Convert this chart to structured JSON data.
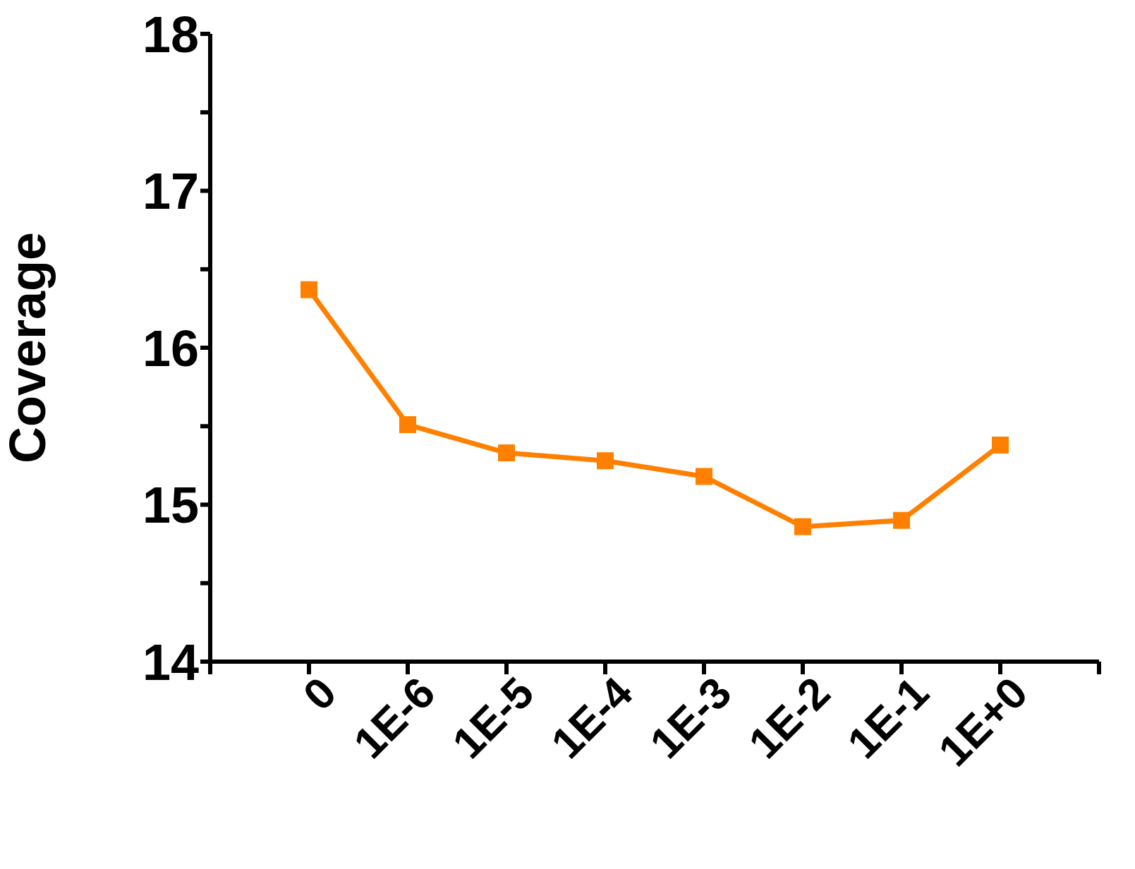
{
  "chart_data": {
    "type": "line",
    "ylabel": "Coverage",
    "categories": [
      "0",
      "1E-6",
      "1E-5",
      "1E-4",
      "1E-3",
      "1E-2",
      "1E-1",
      "1E+0"
    ],
    "series": [
      {
        "color": "#ff8000",
        "values": [
          16.37,
          15.51,
          15.33,
          15.28,
          15.18,
          14.86,
          14.9,
          15.38
        ]
      }
    ],
    "ylim": [
      14,
      18
    ],
    "yticks": [
      14,
      {
        "value": 14.5,
        "label": null
      },
      15,
      {
        "value": 15.5,
        "label": null
      },
      16,
      {
        "value": 16.5,
        "label": null
      },
      17,
      {
        "value": 17.5,
        "label": null
      },
      18
    ],
    "grid": false,
    "legend": false,
    "marker": "square",
    "line_style": "solid"
  }
}
